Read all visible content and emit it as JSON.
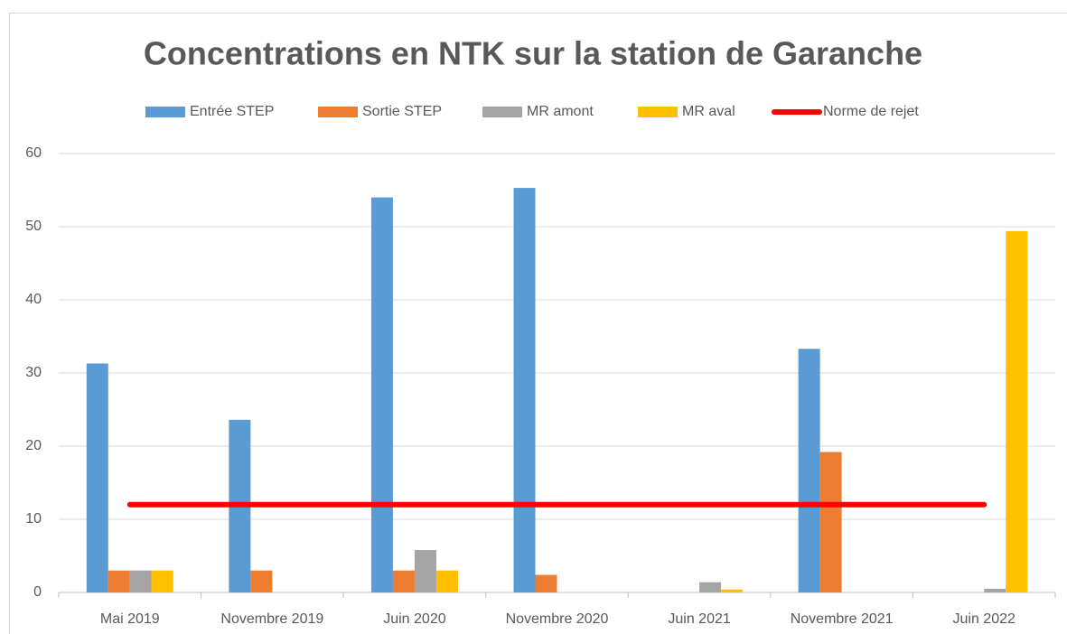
{
  "chart_data": {
    "type": "bar",
    "title": "Concentrations en NTK sur la station de Garanche",
    "categories": [
      "Mai 2019",
      "Novembre 2019",
      "Juin 2020",
      "Novembre 2020",
      "Juin 2021",
      "Novembre 2021",
      "Juin 2022"
    ],
    "series": [
      {
        "name": "Entrée STEP",
        "color": "#5b9bd5",
        "values": [
          31.3,
          23.6,
          54,
          55.3,
          null,
          33.3,
          null
        ]
      },
      {
        "name": "Sortie STEP",
        "color": "#ed7d31",
        "values": [
          3,
          3,
          3,
          2.4,
          null,
          19.2,
          null
        ]
      },
      {
        "name": "MR amont",
        "color": "#a5a5a5",
        "values": [
          3,
          null,
          5.8,
          null,
          1.4,
          null,
          0.5
        ]
      },
      {
        "name": "MR aval",
        "color": "#ffc000",
        "values": [
          3,
          null,
          3,
          null,
          0.4,
          null,
          49.4
        ]
      },
      {
        "name": "Norme de rejet",
        "color": "#ff0000",
        "type": "line",
        "values": [
          12,
          12,
          12,
          12,
          12,
          12,
          12
        ]
      }
    ],
    "ylim": [
      0,
      60
    ],
    "yticks": [
      0,
      10,
      20,
      30,
      40,
      50,
      60
    ],
    "grid": true,
    "legend": "top"
  }
}
